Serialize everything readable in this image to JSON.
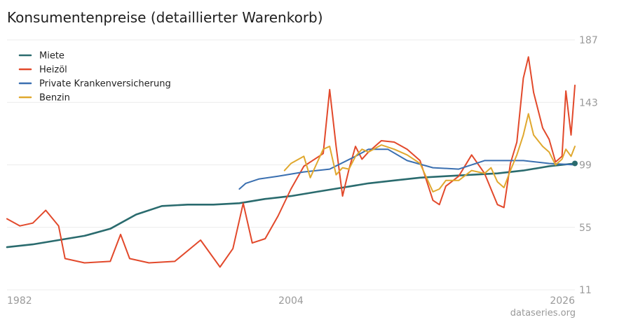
{
  "title": "Konsumentenpreise (detaillierter Warenkorb)",
  "source": "dataseries.org",
  "colors": {
    "Miete": "#2a6b6e",
    "Heizöl": "#e2492b",
    "Private Krankenversicherung": "#3a6fb0",
    "Benzin": "#e0a82e"
  },
  "chart_data": {
    "type": "line",
    "title": "Konsumentenpreise (detaillierter Warenkorb)",
    "xlabel": "",
    "ylabel": "",
    "xlim": [
      1982,
      2026
    ],
    "ylim": [
      11,
      187
    ],
    "y_ticks": [
      187,
      143,
      99,
      55,
      11
    ],
    "x_ticks": [
      1982,
      2004,
      2026
    ],
    "grid": true,
    "legend": "top-left",
    "series": [
      {
        "name": "Miete",
        "x": [
          1982,
          1984,
          1986,
          1988,
          1990,
          1992,
          1994,
          1996,
          1998,
          2000,
          2002,
          2004,
          2006,
          2008,
          2010,
          2012,
          2014,
          2016,
          2018,
          2020,
          2022,
          2024,
          2025,
          2026
        ],
        "y": [
          41,
          43,
          46,
          49,
          54,
          64,
          70,
          71,
          71,
          72,
          75,
          77,
          80,
          83,
          86,
          88,
          90,
          91,
          92,
          93,
          95,
          98,
          99,
          100
        ]
      },
      {
        "name": "Heizöl",
        "x": [
          1982,
          1983,
          1984,
          1985,
          1986,
          1986.5,
          1988,
          1990,
          1990.8,
          1991.5,
          1993,
          1995,
          1997,
          1998.5,
          1999.5,
          2000.3,
          2001,
          2002,
          2003,
          2004,
          2005,
          2006,
          2006.5,
          2007,
          2007.5,
          2008,
          2008.5,
          2009,
          2009.5,
          2010,
          2011,
          2012,
          2013,
          2014,
          2015,
          2015.5,
          2016,
          2017,
          2018,
          2019,
          2020,
          2020.5,
          2021,
          2021.5,
          2022,
          2022.4,
          2022.8,
          2023.5,
          2024,
          2024.5,
          2025,
          2025.3,
          2025.7,
          2026
        ],
        "y": [
          61,
          56,
          58,
          67,
          56,
          33,
          30,
          31,
          50,
          33,
          30,
          31,
          46,
          27,
          40,
          72,
          44,
          47,
          63,
          82,
          98,
          104,
          107,
          152,
          112,
          77,
          96,
          112,
          103,
          108,
          116,
          115,
          110,
          102,
          74,
          71,
          84,
          91,
          106,
          93,
          71,
          69,
          100,
          115,
          160,
          175,
          150,
          125,
          117,
          101,
          105,
          151,
          120,
          155
        ]
      },
      {
        "name": "Private Krankenversicherung",
        "x": [
          2000,
          2000.5,
          2001.5,
          2003,
          2005,
          2007,
          2009,
          2010,
          2011.5,
          2013,
          2015,
          2017,
          2019,
          2020,
          2022,
          2024,
          2026
        ],
        "y": [
          82,
          86,
          89,
          91,
          94,
          96,
          105,
          110,
          110,
          102,
          97,
          96,
          102,
          102,
          102,
          100,
          99
        ]
      },
      {
        "name": "Benzin",
        "x": [
          2003.5,
          2004,
          2005,
          2005.5,
          2006,
          2006.5,
          2007,
          2007.5,
          2008,
          2008.5,
          2009,
          2009.5,
          2010,
          2011,
          2012,
          2013,
          2014,
          2015,
          2015.5,
          2016,
          2017,
          2018,
          2019,
          2019.5,
          2020,
          2020.5,
          2021,
          2021.5,
          2022,
          2022.4,
          2022.8,
          2023.5,
          2024,
          2024.5,
          2025,
          2025.3,
          2025.7,
          2026
        ],
        "y": [
          95,
          100,
          105,
          90,
          100,
          110,
          112,
          92,
          97,
          96,
          105,
          110,
          108,
          113,
          110,
          106,
          100,
          80,
          82,
          88,
          88,
          95,
          93,
          97,
          87,
          83,
          95,
          106,
          120,
          135,
          120,
          112,
          108,
          99,
          103,
          110,
          105,
          112
        ]
      }
    ]
  }
}
